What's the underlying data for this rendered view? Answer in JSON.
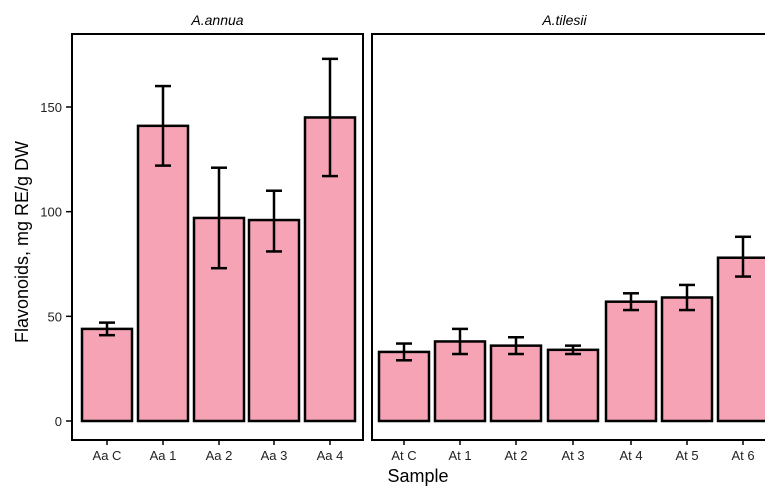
{
  "chart_data": {
    "type": "bar",
    "xlabel": "Sample",
    "ylabel": "Flavonoids, mg RE/g DW",
    "ylim": [
      0,
      175
    ],
    "yticks": [
      0,
      50,
      100,
      150
    ],
    "bar_color": "#F5A3B5",
    "grid": false,
    "panels": [
      {
        "title": "A.annua",
        "categories": [
          "Aa C",
          "Aa 1",
          "Aa 2",
          "Aa 3",
          "Aa 4"
        ],
        "values": [
          44,
          141,
          97,
          96,
          145
        ],
        "error_low": [
          41,
          122,
          73,
          81,
          117
        ],
        "error_high": [
          47,
          160,
          121,
          110,
          173
        ]
      },
      {
        "title": "A.tilesii",
        "categories": [
          "At C",
          "At 1",
          "At 2",
          "At 3",
          "At 4",
          "At 5",
          "At 6"
        ],
        "values": [
          33,
          38,
          36,
          34,
          57,
          59,
          78
        ],
        "error_low": [
          29,
          32,
          32,
          32,
          53,
          53,
          69
        ],
        "error_high": [
          37,
          44,
          40,
          36,
          61,
          65,
          88
        ]
      }
    ]
  }
}
